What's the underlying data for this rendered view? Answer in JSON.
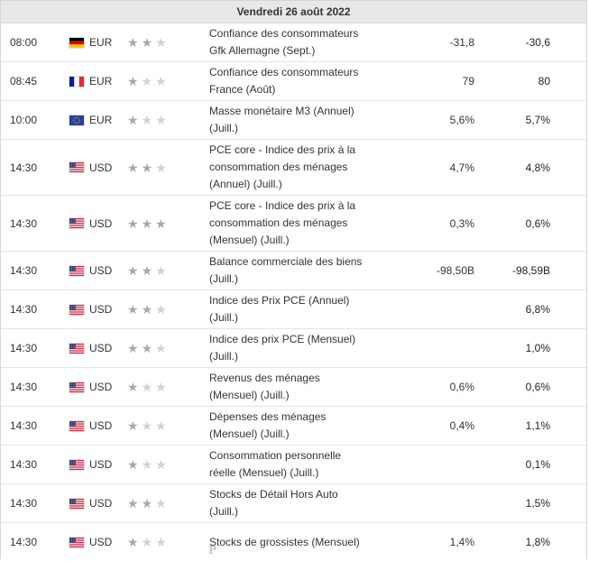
{
  "day_header": "Vendredi 26 août 2022",
  "colors": {
    "star_on": "#a8a8a8",
    "star_off": "#d2d2d2",
    "header_bg": "#e8e8e8"
  },
  "rows": [
    {
      "time": "08:00",
      "flag": "germany-flag-icon",
      "currency": "EUR",
      "importance": 2,
      "event_line1": "Confiance des consommateurs",
      "event_line2": "Gfk Allemagne (Sept.)",
      "actual": "-31,8",
      "forecast": "-30,6"
    },
    {
      "time": "08:45",
      "flag": "france-flag-icon",
      "currency": "EUR",
      "importance": 1,
      "event_line1": "Confiance des consommateurs",
      "event_line2": "France (Août)",
      "actual": "79",
      "forecast": "80"
    },
    {
      "time": "10:00",
      "flag": "eu-flag-icon",
      "currency": "EUR",
      "importance": 1,
      "event_line1": "Masse monétaire M3 (Annuel)",
      "event_line2": "(Juill.)",
      "actual": "5,6%",
      "forecast": "5,7%"
    },
    {
      "time": "14:30",
      "flag": "usa-flag-icon",
      "currency": "USD",
      "importance": 2,
      "event_line1": "PCE core - Indice des prix à la",
      "event_line2": "consommation des ménages",
      "event_line3": "(Annuel) (Juill.)",
      "actual": "4,7%",
      "forecast": "4,8%"
    },
    {
      "time": "14:30",
      "flag": "usa-flag-icon",
      "currency": "USD",
      "importance": 3,
      "event_line1": "PCE core - Indice des prix à la",
      "event_line2": "consommation des ménages",
      "event_line3": "(Mensuel) (Juill.)",
      "actual": "0,3%",
      "forecast": "0,6%"
    },
    {
      "time": "14:30",
      "flag": "usa-flag-icon",
      "currency": "USD",
      "importance": 2,
      "event_line1": "Balance commerciale des biens",
      "event_line2": "(Juill.)",
      "actual": "-98,50B",
      "forecast": "-98,59B"
    },
    {
      "time": "14:30",
      "flag": "usa-flag-icon",
      "currency": "USD",
      "importance": 2,
      "event_line1": "Indice des Prix PCE (Annuel)",
      "event_line2": "(Juill.)",
      "actual": "",
      "forecast": "6,8%"
    },
    {
      "time": "14:30",
      "flag": "usa-flag-icon",
      "currency": "USD",
      "importance": 2,
      "event_line1": "Indice des prix PCE (Mensuel)",
      "event_line2": "(Juill.)",
      "actual": "",
      "forecast": "1,0%"
    },
    {
      "time": "14:30",
      "flag": "usa-flag-icon",
      "currency": "USD",
      "importance": 1,
      "event_line1": "Revenus des ménages",
      "event_line2": "(Mensuel) (Juill.)",
      "actual": "0,6%",
      "forecast": "0,6%"
    },
    {
      "time": "14:30",
      "flag": "usa-flag-icon",
      "currency": "USD",
      "importance": 1,
      "event_line1": "Dépenses des ménages",
      "event_line2": "(Mensuel) (Juill.)",
      "actual": "0,4%",
      "forecast": "1,1%"
    },
    {
      "time": "14:30",
      "flag": "usa-flag-icon",
      "currency": "USD",
      "importance": 1,
      "event_line1": "Consommation personnelle",
      "event_line2": "réelle (Mensuel) (Juill.)",
      "actual": "",
      "forecast": "0,1%"
    },
    {
      "time": "14:30",
      "flag": "usa-flag-icon",
      "currency": "USD",
      "importance": 2,
      "event_line1": "Stocks de Détail Hors Auto",
      "event_line2": "(Juill.)",
      "actual": "",
      "forecast": "1,5%"
    },
    {
      "time": "14:30",
      "flag": "usa-flag-icon",
      "currency": "USD",
      "importance": 1,
      "event_line1": "Stocks de grossistes (Mensuel)",
      "event_line2": "",
      "actual": "1,4%",
      "forecast": "1,8%"
    }
  ],
  "watermark_glyph": "P"
}
